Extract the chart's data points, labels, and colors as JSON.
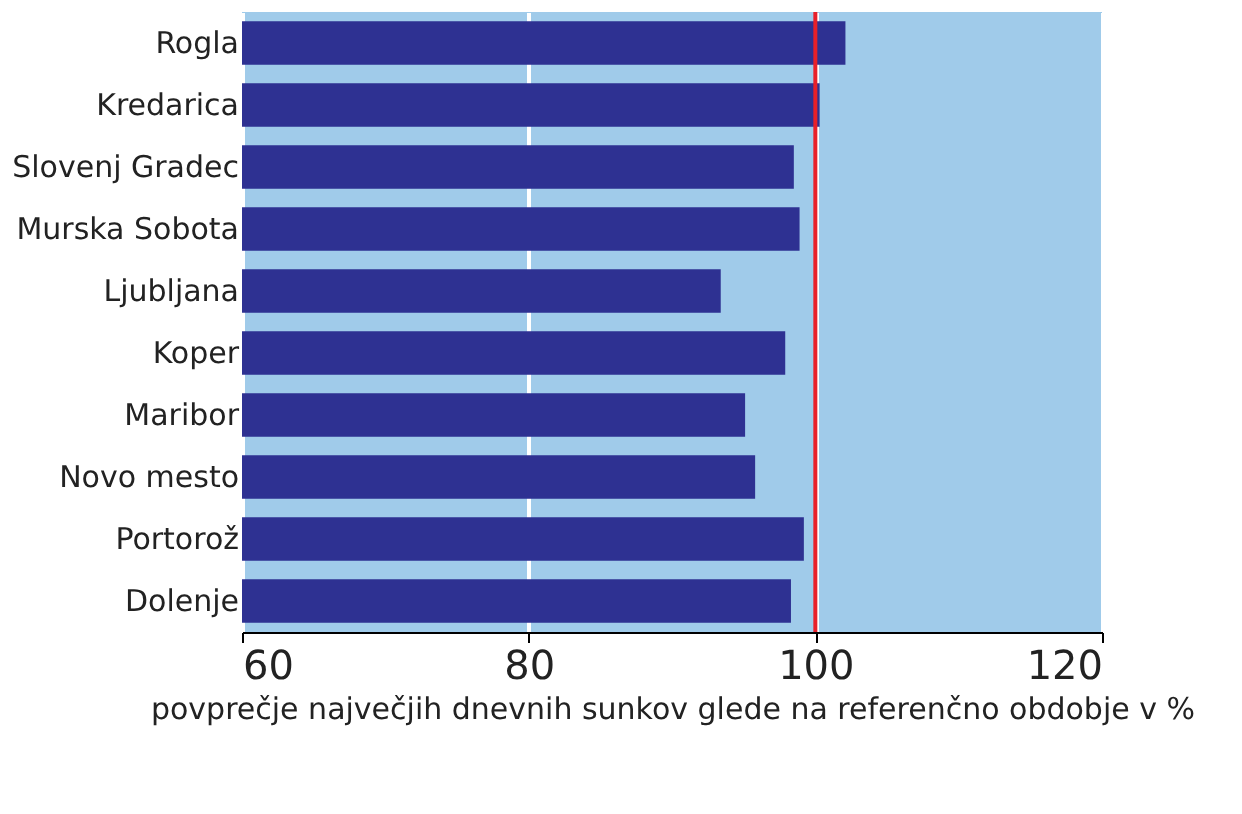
{
  "chart_data": {
    "type": "bar",
    "orientation": "horizontal",
    "xlabel": "povprečje največjih dnevnih sunkov glede na referenčno obdobje v %",
    "categories": [
      "Rogla",
      "Kredarica",
      "Slovenj Gradec",
      "Murska Sobota",
      "Ljubljana",
      "Koper",
      "Maribor",
      "Novo mesto",
      "Portorož",
      "Dolenje"
    ],
    "values": [
      102.1,
      100.3,
      98.5,
      98.9,
      93.4,
      97.9,
      95.1,
      95.8,
      99.2,
      98.3
    ],
    "color": "#2e3192",
    "xlim": [
      60,
      120
    ],
    "xticks": [
      60,
      80,
      100,
      120
    ],
    "grid": "x",
    "ref_lines": [
      {
        "axis": "x",
        "value": 100,
        "color": "#e8202a"
      }
    ]
  }
}
